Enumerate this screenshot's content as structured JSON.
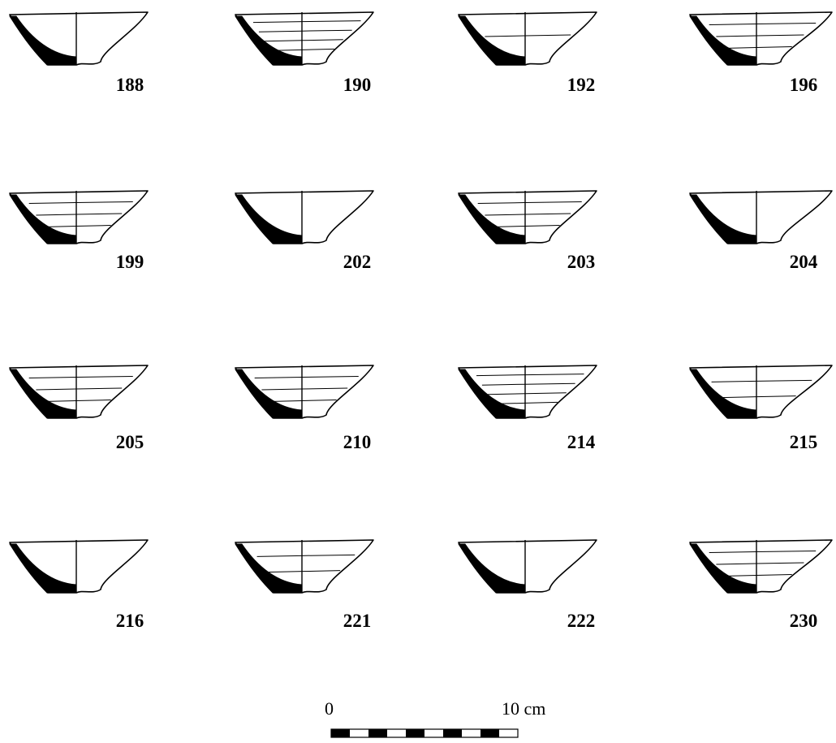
{
  "figure": {
    "vessels": [
      {
        "id": "188",
        "lines": 0
      },
      {
        "id": "190",
        "lines": 4
      },
      {
        "id": "192",
        "lines": 1
      },
      {
        "id": "196",
        "lines": 3
      },
      {
        "id": "199",
        "lines": 3
      },
      {
        "id": "202",
        "lines": 0
      },
      {
        "id": "203",
        "lines": 3
      },
      {
        "id": "204",
        "lines": 0
      },
      {
        "id": "205",
        "lines": 3
      },
      {
        "id": "210",
        "lines": 3
      },
      {
        "id": "214",
        "lines": 4
      },
      {
        "id": "215",
        "lines": 2
      },
      {
        "id": "216",
        "lines": 0
      },
      {
        "id": "221",
        "lines": 2
      },
      {
        "id": "222",
        "lines": 0
      },
      {
        "id": "230",
        "lines": 3
      }
    ],
    "scale_bar": {
      "start_label": "0",
      "end_label": "10 cm",
      "segments": 10
    }
  }
}
